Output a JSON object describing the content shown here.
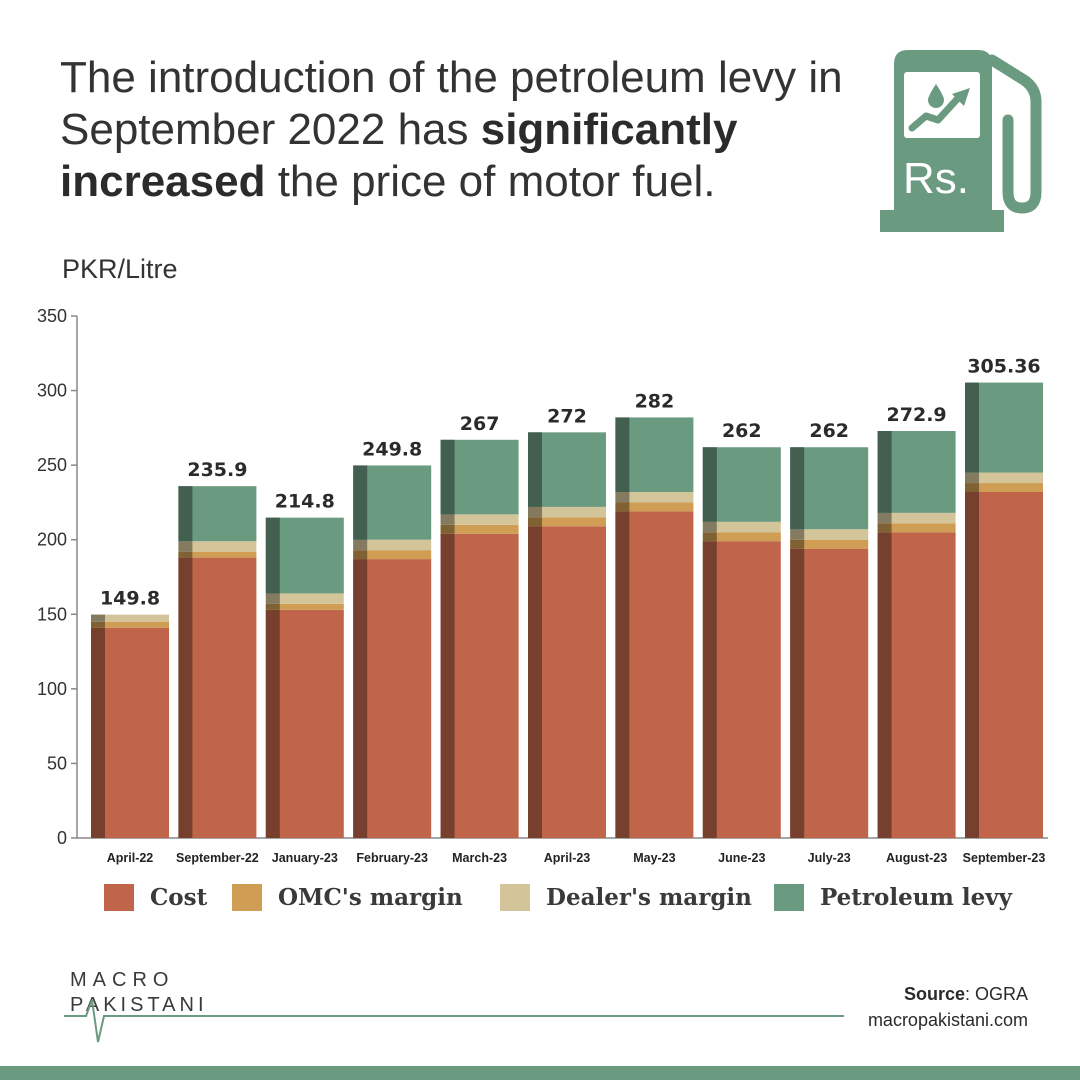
{
  "headline": {
    "part1": "The introduction of the petroleum levy in September 2022 has ",
    "bold1": "significantly increased",
    "part2": " the price of motor fuel."
  },
  "icon": {
    "name": "fuel-pump-icon",
    "symbol": "Rs.",
    "color": "#6a9a80"
  },
  "chart_data": {
    "type": "bar",
    "stacked": true,
    "title": "",
    "ylabel": "PKR/Litre",
    "xlabel": "",
    "ylim": [
      0,
      350
    ],
    "yticks": [
      0,
      50,
      100,
      150,
      200,
      250,
      300,
      350
    ],
    "categories": [
      "April-22",
      "September-22",
      "January-23",
      "February-23",
      "March-23",
      "April-23",
      "May-23",
      "June-23",
      "July-23",
      "August-23",
      "September-23"
    ],
    "totals_labels": [
      "149.8",
      "235.9",
      "214.8",
      "249.8",
      "267",
      "272",
      "282",
      "262",
      "262",
      "272.9",
      "305.36"
    ],
    "series": [
      {
        "name": "Cost",
        "color": "#c0654a",
        "values": [
          141,
          188,
          153,
          187,
          204,
          209,
          219,
          199,
          194,
          205,
          232
        ]
      },
      {
        "name": "OMC's margin",
        "color": "#cf9d53",
        "values": [
          4,
          4,
          4,
          6,
          6,
          6,
          6,
          6,
          6,
          6,
          6
        ]
      },
      {
        "name": "Dealer's margin",
        "color": "#d4c49a",
        "values": [
          4.8,
          7,
          7,
          7,
          7,
          7,
          7,
          7,
          7,
          7,
          7
        ]
      },
      {
        "name": "Petroleum levy",
        "color": "#6a9a80",
        "values": [
          0,
          36.9,
          50.8,
          49.8,
          50,
          50,
          50,
          50,
          55,
          54.9,
          60.36
        ]
      }
    ],
    "legend_position": "bottom",
    "grid": false
  },
  "source": {
    "label": "Source",
    "value": ": OGRA"
  },
  "site": "macropakistani.com",
  "brand": {
    "line1": "MACRO",
    "line2": "PAKISTANI"
  }
}
